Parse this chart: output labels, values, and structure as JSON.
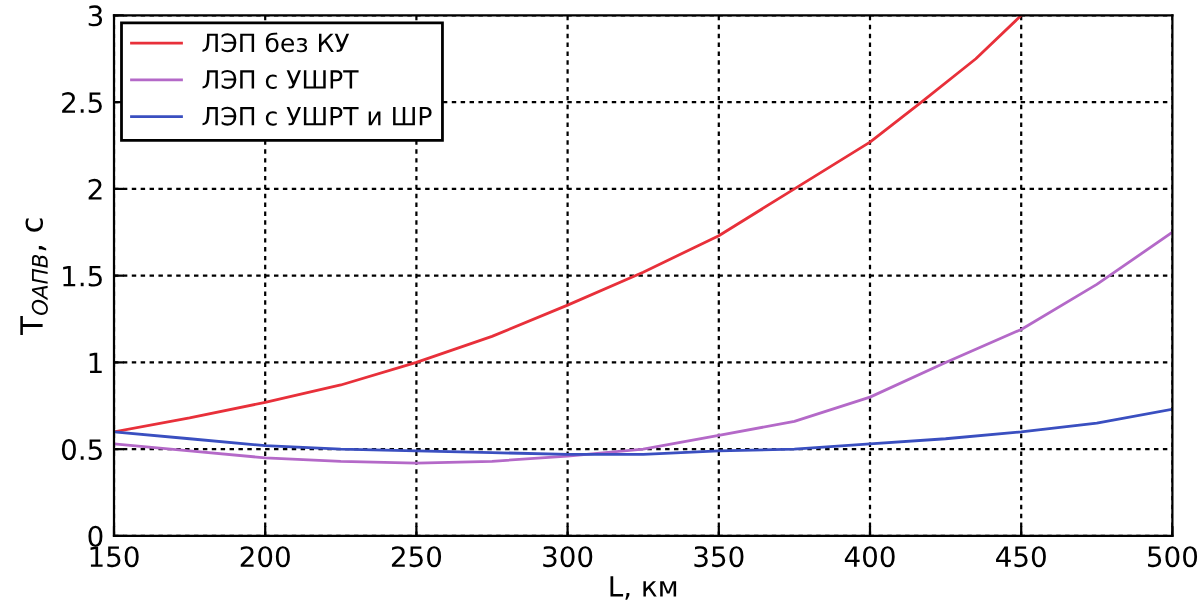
{
  "chart_data": {
    "type": "line",
    "xlabel": "L, км",
    "ylabel": "T$_{ОАПВ}$, с",
    "xlim": [
      150,
      500
    ],
    "ylim": [
      0,
      3
    ],
    "xticks": [
      150,
      200,
      250,
      300,
      350,
      400,
      450,
      500
    ],
    "yticks": [
      0,
      0.5,
      1,
      1.5,
      2,
      2.5,
      3
    ],
    "grid": true,
    "legend": "top left",
    "line_style": "solid",
    "marker": "none",
    "series": [
      {
        "name": "ЛЭП без КУ",
        "color": "#e8303a",
        "x": [
          150,
          175,
          200,
          225,
          250,
          275,
          300,
          325,
          350,
          375,
          400,
          417,
          435,
          450
        ],
        "values": [
          0.6,
          0.68,
          0.77,
          0.87,
          1.0,
          1.15,
          1.33,
          1.52,
          1.73,
          2.0,
          2.27,
          2.5,
          2.75,
          3.0
        ]
      },
      {
        "name": "ЛЭП с УШРТ",
        "color": "#b469c8",
        "x": [
          150,
          175,
          200,
          225,
          250,
          275,
          300,
          325,
          350,
          375,
          400,
          425,
          450,
          475,
          500
        ],
        "values": [
          0.53,
          0.49,
          0.45,
          0.43,
          0.42,
          0.43,
          0.46,
          0.5,
          0.58,
          0.66,
          0.8,
          1.0,
          1.19,
          1.45,
          1.75
        ]
      },
      {
        "name": "ЛЭП с УШРТ и ШР",
        "color": "#3a4fc0",
        "x": [
          150,
          175,
          200,
          225,
          250,
          275,
          300,
          325,
          350,
          375,
          400,
          425,
          450,
          475,
          500
        ],
        "values": [
          0.6,
          0.56,
          0.52,
          0.5,
          0.49,
          0.48,
          0.47,
          0.47,
          0.49,
          0.5,
          0.53,
          0.56,
          0.6,
          0.65,
          0.73
        ]
      }
    ]
  }
}
